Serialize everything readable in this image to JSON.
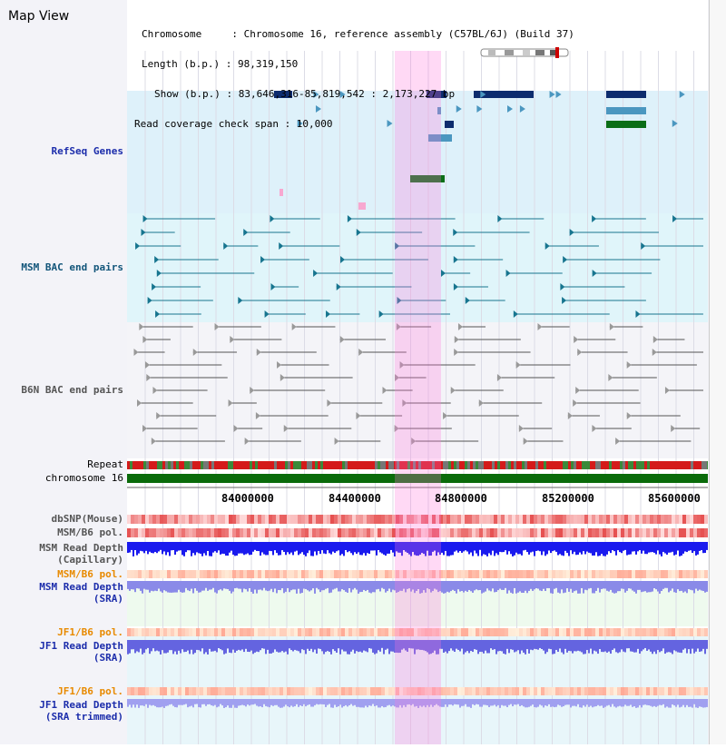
{
  "title": "Map View",
  "info": {
    "line1": "Chromosome     : Chromosome 16, reference assembly (C57BL/6J) (Build 37)",
    "line2": "Length (b.p.) : 98,319,150",
    "line3": "Show (b.p.) : 83,646,316-85,819,542 : 2,173,227 bp",
    "line4": "Read coverage check span : 10,000"
  },
  "tracks": {
    "refseq": "RefSeq Genes",
    "msm_bac": "MSM BAC end pairs",
    "b6n_bac": "B6N BAC end pairs",
    "repeat": "Repeat",
    "chrom": "chromosome 16",
    "dbsnp": "dbSNP(Mouse)",
    "msm_b6_pol": "MSM/B6 pol.",
    "msm_rd_cap1": "MSM Read Depth",
    "msm_rd_cap2": "(Capillary)",
    "msm_b6_pol2": "MSM/B6 pol.",
    "msm_rd_sra1": "MSM Read Depth",
    "msm_rd_sra2": "(SRA)",
    "jf1_b6_pol": "JF1/B6 pol.",
    "jf1_rd_sra1": "JF1 Read Depth",
    "jf1_rd_sra2": "(SRA)",
    "jf1_b6_pol2": "JF1/B6 pol.",
    "jf1_rd_trim1": "JF1 Read Depth",
    "jf1_rd_trim2": "(SRA trimmed)"
  },
  "axis": {
    "ticks": [
      "84000000",
      "84400000",
      "84800000",
      "85200000",
      "85600000"
    ]
  },
  "colors": {
    "refseq_bg": "#def1fa",
    "msm_bg": "#e0f5fa",
    "gene_dark": "#0d2c6e",
    "gene_mid": "#4b97c0",
    "gene_green": "#0a6e17",
    "bac_msm": "#17758f",
    "bac_b6n": "#555555",
    "chrom_green": "#0a6b0a"
  }
}
